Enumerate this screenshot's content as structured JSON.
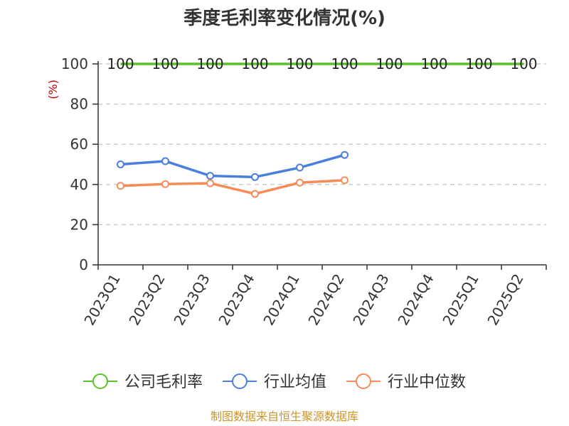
{
  "title": "季度毛利率变化情况(%)",
  "source": "制图数据来自恒生聚源数据库",
  "chart_data": {
    "type": "line",
    "title": "季度毛利率变化情况(%)",
    "ylabel": "(%)",
    "xlabel": "",
    "ylim": [
      0,
      100
    ],
    "yticks": [
      0,
      20,
      40,
      60,
      80,
      100
    ],
    "grid": true,
    "legend_position": "bottom",
    "categories": [
      "2023Q1",
      "2023Q2",
      "2023Q3",
      "2023Q4",
      "2024Q1",
      "2024Q2",
      "2024Q3",
      "2024Q4",
      "2025Q1",
      "2025Q2"
    ],
    "series": [
      {
        "name": "公司毛利率",
        "color": "#5cc02a",
        "values": [
          100,
          100,
          100,
          100,
          100,
          100,
          100,
          100,
          100,
          100
        ],
        "data_labels": [
          "100",
          "100",
          "100",
          "100",
          "100",
          "100",
          "100",
          "100",
          "100",
          "100"
        ]
      },
      {
        "name": "行业均值",
        "color": "#4a7fdc",
        "values": [
          50.0,
          51.6,
          44.3,
          43.7,
          48.4,
          54.7,
          null,
          null,
          null,
          null
        ]
      },
      {
        "name": "行业中位数",
        "color": "#f48c5a",
        "values": [
          39.3,
          40.2,
          40.6,
          35.3,
          40.9,
          42.1,
          null,
          null,
          null,
          null
        ]
      }
    ]
  }
}
